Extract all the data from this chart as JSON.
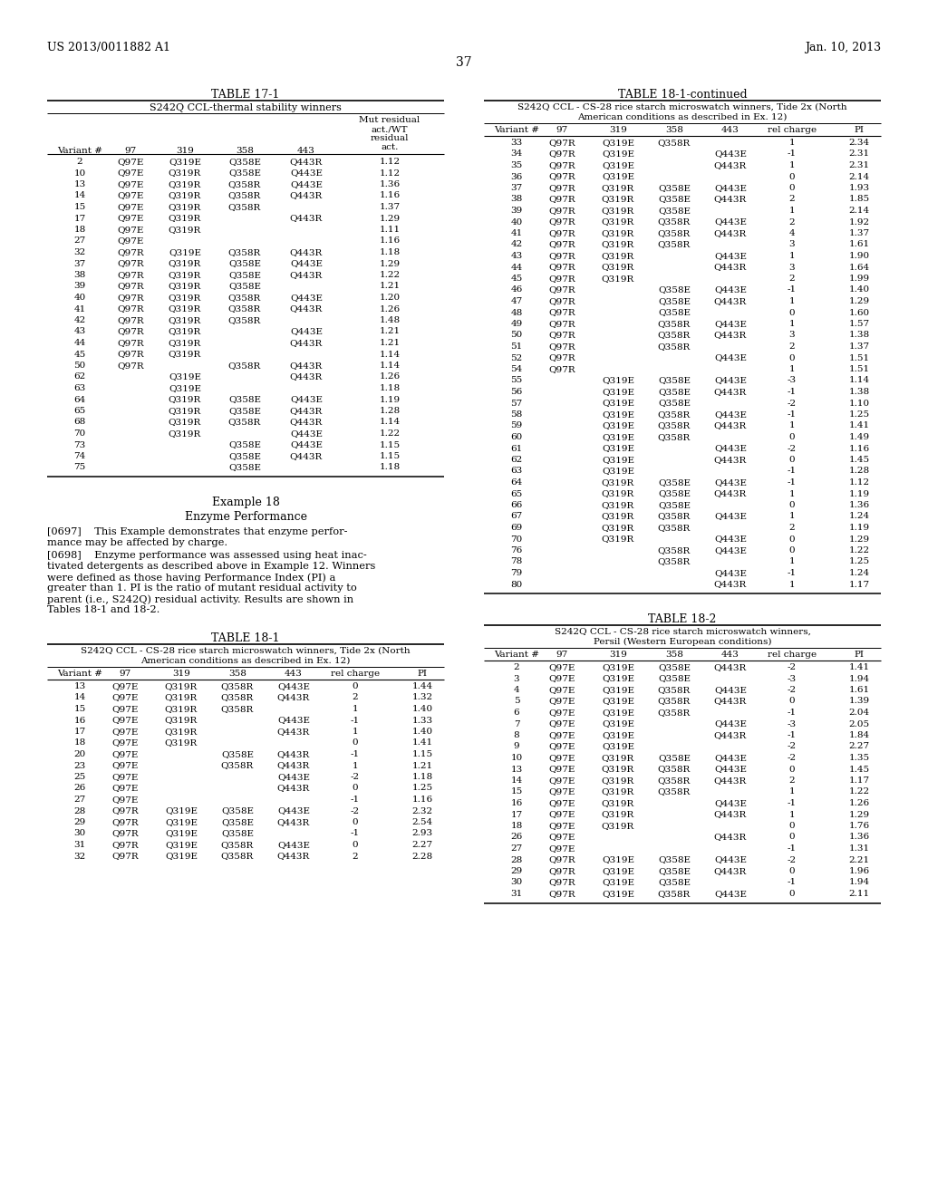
{
  "header_left": "US 2013/0011882 A1",
  "header_right": "Jan. 10, 2013",
  "page_number": "37",
  "table17_title": "TABLE 17-1",
  "table17_subtitle": "S242Q CCL-thermal stability winners",
  "table17_data": [
    [
      "2",
      "Q97E",
      "Q319E",
      "Q358E",
      "Q443R",
      "1.12"
    ],
    [
      "10",
      "Q97E",
      "Q319R",
      "Q358E",
      "Q443E",
      "1.12"
    ],
    [
      "13",
      "Q97E",
      "Q319R",
      "Q358R",
      "Q443E",
      "1.36"
    ],
    [
      "14",
      "Q97E",
      "Q319R",
      "Q358R",
      "Q443R",
      "1.16"
    ],
    [
      "15",
      "Q97E",
      "Q319R",
      "Q358R",
      "",
      "1.37"
    ],
    [
      "17",
      "Q97E",
      "Q319R",
      "",
      "Q443R",
      "1.29"
    ],
    [
      "18",
      "Q97E",
      "Q319R",
      "",
      "",
      "1.11"
    ],
    [
      "27",
      "Q97E",
      "",
      "",
      "",
      "1.16"
    ],
    [
      "32",
      "Q97R",
      "Q319E",
      "Q358R",
      "Q443R",
      "1.18"
    ],
    [
      "37",
      "Q97R",
      "Q319R",
      "Q358E",
      "Q443E",
      "1.29"
    ],
    [
      "38",
      "Q97R",
      "Q319R",
      "Q358E",
      "Q443R",
      "1.22"
    ],
    [
      "39",
      "Q97R",
      "Q319R",
      "Q358E",
      "",
      "1.21"
    ],
    [
      "40",
      "Q97R",
      "Q319R",
      "Q358R",
      "Q443E",
      "1.20"
    ],
    [
      "41",
      "Q97R",
      "Q319R",
      "Q358R",
      "Q443R",
      "1.26"
    ],
    [
      "42",
      "Q97R",
      "Q319R",
      "Q358R",
      "",
      "1.48"
    ],
    [
      "43",
      "Q97R",
      "Q319R",
      "",
      "Q443E",
      "1.21"
    ],
    [
      "44",
      "Q97R",
      "Q319R",
      "",
      "Q443R",
      "1.21"
    ],
    [
      "45",
      "Q97R",
      "Q319R",
      "",
      "",
      "1.14"
    ],
    [
      "50",
      "Q97R",
      "",
      "Q358R",
      "Q443R",
      "1.14"
    ],
    [
      "62",
      "",
      "Q319E",
      "",
      "Q443R",
      "1.26"
    ],
    [
      "63",
      "",
      "Q319E",
      "",
      "",
      "1.18"
    ],
    [
      "64",
      "",
      "Q319R",
      "Q358E",
      "Q443E",
      "1.19"
    ],
    [
      "65",
      "",
      "Q319R",
      "Q358E",
      "Q443R",
      "1.28"
    ],
    [
      "68",
      "",
      "Q319R",
      "Q358R",
      "Q443R",
      "1.14"
    ],
    [
      "70",
      "",
      "Q319R",
      "",
      "Q443E",
      "1.22"
    ],
    [
      "73",
      "",
      "",
      "Q358E",
      "Q443E",
      "1.15"
    ],
    [
      "74",
      "",
      "",
      "Q358E",
      "Q443R",
      "1.15"
    ],
    [
      "75",
      "",
      "",
      "Q358E",
      "",
      "1.18"
    ]
  ],
  "example18_title": "Example 18",
  "example18_subtitle": "Enzyme Performance",
  "para0697": "[0697]    This Example demonstrates that enzyme performance may be affected by charge.",
  "para0698": "[0698]    Enzyme performance was assessed using heat inactivated detergents as described above in Example 12. Winners were defined as those having Performance Index (PI) a greater than 1. PI is the ratio of mutant residual activity to parent (i.e., S242Q) residual activity. Results are shown in Tables 18-1 and 18-2.",
  "table181_title": "TABLE 18-1",
  "table181_subtitle1": "S242Q CCL - CS-28 rice starch microswatch winners, Tide 2x (North",
  "table181_subtitle2": "American conditions as described in Ex. 12)",
  "table181_data": [
    [
      "13",
      "Q97E",
      "Q319R",
      "Q358R",
      "Q443E",
      "0",
      "1.44"
    ],
    [
      "14",
      "Q97E",
      "Q319R",
      "Q358R",
      "Q443R",
      "2",
      "1.32"
    ],
    [
      "15",
      "Q97E",
      "Q319R",
      "Q358R",
      "",
      "1",
      "1.40"
    ],
    [
      "16",
      "Q97E",
      "Q319R",
      "",
      "Q443E",
      "-1",
      "1.33"
    ],
    [
      "17",
      "Q97E",
      "Q319R",
      "",
      "Q443R",
      "1",
      "1.40"
    ],
    [
      "18",
      "Q97E",
      "Q319R",
      "",
      "",
      "0",
      "1.41"
    ],
    [
      "20",
      "Q97E",
      "",
      "Q358E",
      "Q443R",
      "-1",
      "1.15"
    ],
    [
      "23",
      "Q97E",
      "",
      "Q358R",
      "Q443R",
      "1",
      "1.21"
    ],
    [
      "25",
      "Q97E",
      "",
      "",
      "Q443E",
      "-2",
      "1.18"
    ],
    [
      "26",
      "Q97E",
      "",
      "",
      "Q443R",
      "0",
      "1.25"
    ],
    [
      "27",
      "Q97E",
      "",
      "",
      "",
      "-1",
      "1.16"
    ],
    [
      "28",
      "Q97R",
      "Q319E",
      "Q358E",
      "Q443E",
      "-2",
      "2.32"
    ],
    [
      "29",
      "Q97R",
      "Q319E",
      "Q358E",
      "Q443R",
      "0",
      "2.54"
    ],
    [
      "30",
      "Q97R",
      "Q319E",
      "Q358E",
      "",
      "-1",
      "2.93"
    ],
    [
      "31",
      "Q97R",
      "Q319E",
      "Q358R",
      "Q443E",
      "0",
      "2.27"
    ],
    [
      "32",
      "Q97R",
      "Q319E",
      "Q358R",
      "Q443R",
      "2",
      "2.28"
    ]
  ],
  "table181cont_title": "TABLE 18-1-continued",
  "table181cont_subtitle1": "S242Q CCL - CS-28 rice starch microswatch winners, Tide 2x (North",
  "table181cont_subtitle2": "American conditions as described in Ex. 12)",
  "table181cont_data": [
    [
      "33",
      "Q97R",
      "Q319E",
      "Q358R",
      "",
      "1",
      "2.34"
    ],
    [
      "34",
      "Q97R",
      "Q319E",
      "",
      "Q443E",
      "-1",
      "2.31"
    ],
    [
      "35",
      "Q97R",
      "Q319E",
      "",
      "Q443R",
      "1",
      "2.31"
    ],
    [
      "36",
      "Q97R",
      "Q319E",
      "",
      "",
      "0",
      "2.14"
    ],
    [
      "37",
      "Q97R",
      "Q319R",
      "Q358E",
      "Q443E",
      "0",
      "1.93"
    ],
    [
      "38",
      "Q97R",
      "Q319R",
      "Q358E",
      "Q443R",
      "2",
      "1.85"
    ],
    [
      "39",
      "Q97R",
      "Q319R",
      "Q358E",
      "",
      "1",
      "2.14"
    ],
    [
      "40",
      "Q97R",
      "Q319R",
      "Q358R",
      "Q443E",
      "2",
      "1.92"
    ],
    [
      "41",
      "Q97R",
      "Q319R",
      "Q358R",
      "Q443R",
      "4",
      "1.37"
    ],
    [
      "42",
      "Q97R",
      "Q319R",
      "Q358R",
      "",
      "3",
      "1.61"
    ],
    [
      "43",
      "Q97R",
      "Q319R",
      "",
      "Q443E",
      "1",
      "1.90"
    ],
    [
      "44",
      "Q97R",
      "Q319R",
      "",
      "Q443R",
      "3",
      "1.64"
    ],
    [
      "45",
      "Q97R",
      "Q319R",
      "",
      "",
      "2",
      "1.99"
    ],
    [
      "46",
      "Q97R",
      "",
      "Q358E",
      "Q443E",
      "-1",
      "1.40"
    ],
    [
      "47",
      "Q97R",
      "",
      "Q358E",
      "Q443R",
      "1",
      "1.29"
    ],
    [
      "48",
      "Q97R",
      "",
      "Q358E",
      "",
      "0",
      "1.60"
    ],
    [
      "49",
      "Q97R",
      "",
      "Q358R",
      "Q443E",
      "1",
      "1.57"
    ],
    [
      "50",
      "Q97R",
      "",
      "Q358R",
      "Q443R",
      "3",
      "1.38"
    ],
    [
      "51",
      "Q97R",
      "",
      "Q358R",
      "",
      "2",
      "1.37"
    ],
    [
      "52",
      "Q97R",
      "",
      "",
      "Q443E",
      "0",
      "1.51"
    ],
    [
      "54",
      "Q97R",
      "",
      "",
      "",
      "1",
      "1.51"
    ],
    [
      "55",
      "",
      "Q319E",
      "Q358E",
      "Q443E",
      "-3",
      "1.14"
    ],
    [
      "56",
      "",
      "Q319E",
      "Q358E",
      "Q443R",
      "-1",
      "1.38"
    ],
    [
      "57",
      "",
      "Q319E",
      "Q358E",
      "",
      "-2",
      "1.10"
    ],
    [
      "58",
      "",
      "Q319E",
      "Q358R",
      "Q443E",
      "-1",
      "1.25"
    ],
    [
      "59",
      "",
      "Q319E",
      "Q358R",
      "Q443R",
      "1",
      "1.41"
    ],
    [
      "60",
      "",
      "Q319E",
      "Q358R",
      "",
      "0",
      "1.49"
    ],
    [
      "61",
      "",
      "Q319E",
      "",
      "Q443E",
      "-2",
      "1.16"
    ],
    [
      "62",
      "",
      "Q319E",
      "",
      "Q443R",
      "0",
      "1.45"
    ],
    [
      "63",
      "",
      "Q319E",
      "",
      "",
      "-1",
      "1.28"
    ],
    [
      "64",
      "",
      "Q319R",
      "Q358E",
      "Q443E",
      "-1",
      "1.12"
    ],
    [
      "65",
      "",
      "Q319R",
      "Q358E",
      "Q443R",
      "1",
      "1.19"
    ],
    [
      "66",
      "",
      "Q319R",
      "Q358E",
      "",
      "0",
      "1.36"
    ],
    [
      "67",
      "",
      "Q319R",
      "Q358R",
      "Q443E",
      "1",
      "1.24"
    ],
    [
      "69",
      "",
      "Q319R",
      "Q358R",
      "",
      "2",
      "1.19"
    ],
    [
      "70",
      "",
      "Q319R",
      "",
      "Q443E",
      "0",
      "1.29"
    ],
    [
      "76",
      "",
      "",
      "Q358R",
      "Q443E",
      "0",
      "1.22"
    ],
    [
      "78",
      "",
      "",
      "Q358R",
      "",
      "1",
      "1.25"
    ],
    [
      "79",
      "",
      "",
      "",
      "Q443E",
      "-1",
      "1.24"
    ],
    [
      "80",
      "",
      "",
      "",
      "Q443R",
      "1",
      "1.17"
    ]
  ],
  "table182_title": "TABLE 18-2",
  "table182_subtitle1": "S242Q CCL - CS-28 rice starch microswatch winners,",
  "table182_subtitle2": "Persil (Western European conditions)",
  "table182_data": [
    [
      "2",
      "Q97E",
      "Q319E",
      "Q358E",
      "Q443R",
      "-2",
      "1.41"
    ],
    [
      "3",
      "Q97E",
      "Q319E",
      "Q358E",
      "",
      "-3",
      "1.94"
    ],
    [
      "4",
      "Q97E",
      "Q319E",
      "Q358R",
      "Q443E",
      "-2",
      "1.61"
    ],
    [
      "5",
      "Q97E",
      "Q319E",
      "Q358R",
      "Q443R",
      "0",
      "1.39"
    ],
    [
      "6",
      "Q97E",
      "Q319E",
      "Q358R",
      "",
      "-1",
      "2.04"
    ],
    [
      "7",
      "Q97E",
      "Q319E",
      "",
      "Q443E",
      "-3",
      "2.05"
    ],
    [
      "8",
      "Q97E",
      "Q319E",
      "",
      "Q443R",
      "-1",
      "1.84"
    ],
    [
      "9",
      "Q97E",
      "Q319E",
      "",
      "",
      "-2",
      "2.27"
    ],
    [
      "10",
      "Q97E",
      "Q319R",
      "Q358E",
      "Q443E",
      "-2",
      "1.35"
    ],
    [
      "13",
      "Q97E",
      "Q319R",
      "Q358R",
      "Q443E",
      "0",
      "1.45"
    ],
    [
      "14",
      "Q97E",
      "Q319R",
      "Q358R",
      "Q443R",
      "2",
      "1.17"
    ],
    [
      "15",
      "Q97E",
      "Q319R",
      "Q358R",
      "",
      "1",
      "1.22"
    ],
    [
      "16",
      "Q97E",
      "Q319R",
      "",
      "Q443E",
      "-1",
      "1.26"
    ],
    [
      "17",
      "Q97E",
      "Q319R",
      "",
      "Q443R",
      "1",
      "1.29"
    ],
    [
      "18",
      "Q97E",
      "Q319R",
      "",
      "",
      "0",
      "1.76"
    ],
    [
      "26",
      "Q97E",
      "",
      "",
      "Q443R",
      "0",
      "1.36"
    ],
    [
      "27",
      "Q97E",
      "",
      "",
      "",
      "-1",
      "1.31"
    ],
    [
      "28",
      "Q97R",
      "Q319E",
      "Q358E",
      "Q443E",
      "-2",
      "2.21"
    ],
    [
      "29",
      "Q97R",
      "Q319E",
      "Q358E",
      "Q443R",
      "0",
      "1.96"
    ],
    [
      "30",
      "Q97R",
      "Q319E",
      "Q358E",
      "",
      "-1",
      "1.94"
    ],
    [
      "31",
      "Q97R",
      "Q319E",
      "Q358R",
      "Q443E",
      "0",
      "2.11"
    ]
  ]
}
